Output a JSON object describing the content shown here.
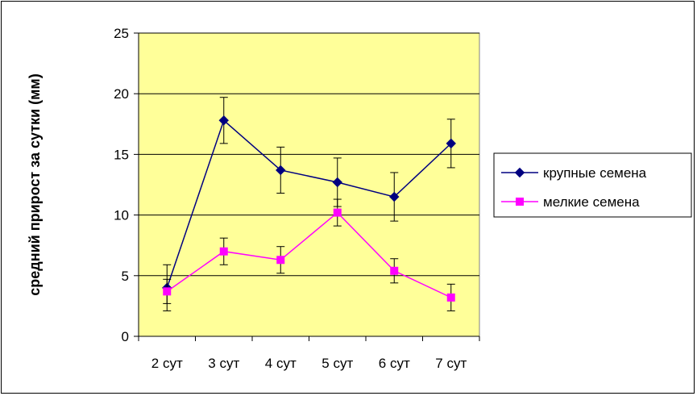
{
  "chart_data": {
    "type": "line",
    "title": "",
    "xlabel": "",
    "ylabel": "средний прирост за сутки (мм)",
    "categories": [
      "2 сут",
      "3 сут",
      "4 сут",
      "5 сут",
      "6 сут",
      "7 сут"
    ],
    "ylim": [
      0,
      25
    ],
    "yticks": [
      0,
      5,
      10,
      15,
      20,
      25
    ],
    "grid": true,
    "plot_background": "#FFFF99",
    "legend_position": "right",
    "series": [
      {
        "name": "крупные семена",
        "color": "#000080",
        "marker": "diamond",
        "values": [
          4.0,
          17.8,
          13.7,
          12.7,
          11.5,
          15.9
        ],
        "errors": [
          1.9,
          1.9,
          1.9,
          2.0,
          2.0,
          2.0
        ]
      },
      {
        "name": "мелкие семена",
        "color": "#FF00FF",
        "marker": "square",
        "values": [
          3.7,
          7.0,
          6.3,
          10.2,
          5.4,
          3.2
        ],
        "errors": [
          1.0,
          1.1,
          1.1,
          1.1,
          1.0,
          1.1
        ]
      }
    ]
  }
}
